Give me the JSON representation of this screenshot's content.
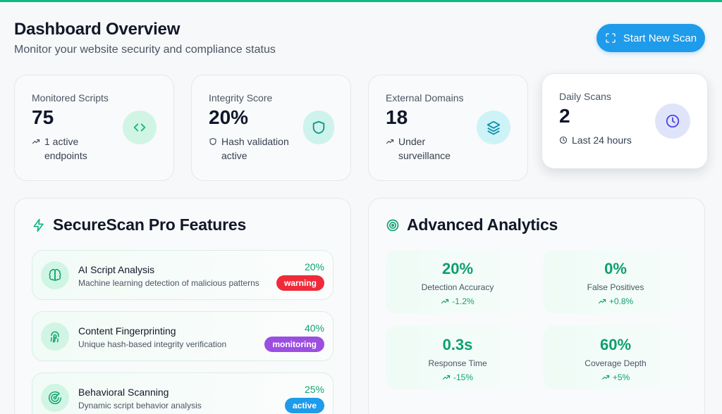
{
  "header": {
    "title": "Dashboard Overview",
    "subtitle": "Monitor your website security and compliance status",
    "scan_button": "Start New Scan"
  },
  "stats": [
    {
      "label": "Monitored Scripts",
      "value": "75",
      "sub": "1 active endpoints",
      "icon": "code-icon",
      "sub_icon": "trending-up-icon",
      "color": "#10b981"
    },
    {
      "label": "Integrity Score",
      "value": "20%",
      "sub": "Hash validation active",
      "icon": "shield-icon",
      "sub_icon": "shield-small-icon",
      "color": "#0d9488"
    },
    {
      "label": "External Domains",
      "value": "18",
      "sub": "Under surveillance",
      "icon": "layers-icon",
      "sub_icon": "trending-up-icon",
      "color": "#0891b2"
    },
    {
      "label": "Daily Scans",
      "value": "2",
      "sub": "Last 24 hours",
      "icon": "clock-icon",
      "sub_icon": "clock-small-icon",
      "color": "#4f46e5"
    }
  ],
  "features_panel": {
    "title": "SecureScan Pro Features",
    "items": [
      {
        "name": "AI Script Analysis",
        "desc": "Machine learning detection of malicious patterns",
        "pct": "20%",
        "badge": "warning",
        "badge_color": "#ef2b3a",
        "icon": "brain-icon"
      },
      {
        "name": "Content Fingerprinting",
        "desc": "Unique hash-based integrity verification",
        "pct": "40%",
        "badge": "monitoring",
        "badge_color": "#9b4fe0",
        "icon": "fingerprint-icon"
      },
      {
        "name": "Behavioral Scanning",
        "desc": "Dynamic script behavior analysis",
        "pct": "25%",
        "badge": "active",
        "badge_color": "#1e9bea",
        "icon": "radar-icon"
      }
    ]
  },
  "analytics_panel": {
    "title": "Advanced Analytics",
    "metrics": [
      {
        "value": "20%",
        "label": "Detection Accuracy",
        "change": "-1.2%"
      },
      {
        "value": "0%",
        "label": "False Positives",
        "change": "+0.8%"
      },
      {
        "value": "0.3s",
        "label": "Response Time",
        "change": "-15%"
      },
      {
        "value": "60%",
        "label": "Coverage Depth",
        "change": "+5%"
      }
    ]
  }
}
